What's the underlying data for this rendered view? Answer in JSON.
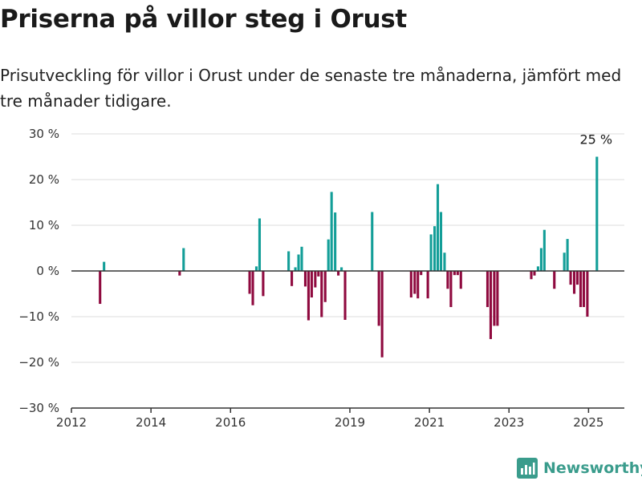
{
  "header": {
    "title": "Priserna på villor steg i Orust",
    "subtitle": "Prisutveckling för villor i Orust under de senaste tre månaderna, jämfört med tre månader tidigare."
  },
  "brand": {
    "name": "Newsworthy",
    "icon": "newsworthy-logo-icon",
    "color": "#3a9c8c"
  },
  "colors": {
    "positive": "#139e98",
    "negative": "#8f0a3f",
    "zero_line": "#333333",
    "grid": "#dddddd"
  },
  "chart_data": {
    "type": "bar",
    "title": "",
    "xlabel": "",
    "ylabel": "",
    "ylim": [
      -30,
      30
    ],
    "xlim": [
      2012,
      2025.9
    ],
    "y_ticks": [
      {
        "value": 30,
        "label": "30 %"
      },
      {
        "value": 20,
        "label": "20 %"
      },
      {
        "value": 10,
        "label": "10 %"
      },
      {
        "value": 0,
        "label": "0 %"
      },
      {
        "value": -10,
        "label": "−10 %"
      },
      {
        "value": -20,
        "label": "−20 %"
      },
      {
        "value": -30,
        "label": "−30 %"
      }
    ],
    "x_ticks": [
      {
        "value": 2012,
        "label": "2012"
      },
      {
        "value": 2014,
        "label": "2014"
      },
      {
        "value": 2016,
        "label": "2016"
      },
      {
        "value": 2019,
        "label": "2019"
      },
      {
        "value": 2021,
        "label": "2021"
      },
      {
        "value": 2023,
        "label": "2023"
      },
      {
        "value": 2025,
        "label": "2025"
      }
    ],
    "grid": true,
    "bars": [
      {
        "x": 2012.72,
        "y": -7.2
      },
      {
        "x": 2012.82,
        "y": 2.0
      },
      {
        "x": 2014.72,
        "y": -1.0
      },
      {
        "x": 2014.82,
        "y": 5.0
      },
      {
        "x": 2016.48,
        "y": -5.0
      },
      {
        "x": 2016.56,
        "y": -7.5
      },
      {
        "x": 2016.65,
        "y": 1.0
      },
      {
        "x": 2016.73,
        "y": 11.5
      },
      {
        "x": 2016.82,
        "y": -5.5
      },
      {
        "x": 2017.46,
        "y": 4.3
      },
      {
        "x": 2017.54,
        "y": -3.3
      },
      {
        "x": 2017.63,
        "y": 0.8
      },
      {
        "x": 2017.71,
        "y": 3.6
      },
      {
        "x": 2017.79,
        "y": 5.3
      },
      {
        "x": 2017.88,
        "y": -3.4
      },
      {
        "x": 2017.96,
        "y": -10.8
      },
      {
        "x": 2018.04,
        "y": -5.8
      },
      {
        "x": 2018.13,
        "y": -3.6
      },
      {
        "x": 2018.21,
        "y": -1.2
      },
      {
        "x": 2018.29,
        "y": -10.1
      },
      {
        "x": 2018.38,
        "y": -6.8
      },
      {
        "x": 2018.46,
        "y": 6.9
      },
      {
        "x": 2018.54,
        "y": 17.3
      },
      {
        "x": 2018.63,
        "y": 12.8
      },
      {
        "x": 2018.71,
        "y": -1.0
      },
      {
        "x": 2018.79,
        "y": 0.8
      },
      {
        "x": 2018.88,
        "y": -10.7
      },
      {
        "x": 2019.56,
        "y": 12.9
      },
      {
        "x": 2019.73,
        "y": -12.0
      },
      {
        "x": 2019.81,
        "y": -18.9
      },
      {
        "x": 2020.54,
        "y": -5.8
      },
      {
        "x": 2020.63,
        "y": -5.0
      },
      {
        "x": 2020.71,
        "y": -6.0
      },
      {
        "x": 2020.79,
        "y": -0.9
      },
      {
        "x": 2020.96,
        "y": -6.0
      },
      {
        "x": 2021.04,
        "y": 8.0
      },
      {
        "x": 2021.13,
        "y": 9.8
      },
      {
        "x": 2021.21,
        "y": 19.0
      },
      {
        "x": 2021.29,
        "y": 12.9
      },
      {
        "x": 2021.38,
        "y": 4.0
      },
      {
        "x": 2021.46,
        "y": -3.9
      },
      {
        "x": 2021.54,
        "y": -7.9
      },
      {
        "x": 2021.63,
        "y": -0.9
      },
      {
        "x": 2021.71,
        "y": -0.9
      },
      {
        "x": 2021.79,
        "y": -3.9
      },
      {
        "x": 2022.46,
        "y": -7.9
      },
      {
        "x": 2022.54,
        "y": -14.9
      },
      {
        "x": 2022.63,
        "y": -12.0
      },
      {
        "x": 2022.71,
        "y": -12.0
      },
      {
        "x": 2023.56,
        "y": -1.8
      },
      {
        "x": 2023.64,
        "y": -1.0
      },
      {
        "x": 2023.73,
        "y": 1.0
      },
      {
        "x": 2023.81,
        "y": 5.0
      },
      {
        "x": 2023.89,
        "y": 9.0
      },
      {
        "x": 2024.14,
        "y": -3.9
      },
      {
        "x": 2024.39,
        "y": 4.0
      },
      {
        "x": 2024.47,
        "y": 7.0
      },
      {
        "x": 2024.55,
        "y": -3.0
      },
      {
        "x": 2024.64,
        "y": -5.0
      },
      {
        "x": 2024.72,
        "y": -3.0
      },
      {
        "x": 2024.8,
        "y": -7.9
      },
      {
        "x": 2024.88,
        "y": -7.9
      },
      {
        "x": 2024.97,
        "y": -10.0
      },
      {
        "x": 2025.21,
        "y": 25.0
      }
    ],
    "annotations": [
      {
        "x": 2025.21,
        "y": 25.0,
        "label": "25 %"
      }
    ]
  }
}
